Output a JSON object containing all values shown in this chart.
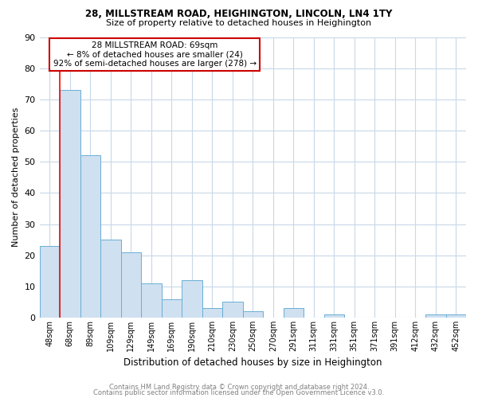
{
  "title1": "28, MILLSTREAM ROAD, HEIGHINGTON, LINCOLN, LN4 1TY",
  "title2": "Size of property relative to detached houses in Heighington",
  "xlabel": "Distribution of detached houses by size in Heighington",
  "ylabel": "Number of detached properties",
  "categories": [
    "48sqm",
    "68sqm",
    "89sqm",
    "109sqm",
    "129sqm",
    "149sqm",
    "169sqm",
    "190sqm",
    "210sqm",
    "230sqm",
    "250sqm",
    "270sqm",
    "291sqm",
    "311sqm",
    "331sqm",
    "351sqm",
    "371sqm",
    "391sqm",
    "412sqm",
    "432sqm",
    "452sqm"
  ],
  "values": [
    23,
    73,
    52,
    25,
    21,
    11,
    6,
    12,
    3,
    5,
    2,
    0,
    3,
    0,
    1,
    0,
    0,
    0,
    0,
    1,
    1
  ],
  "bar_color": "#cfe0f0",
  "bar_edge_color": "#6aaed6",
  "red_line_x": 1,
  "annotation_title": "28 MILLSTREAM ROAD: 69sqm",
  "annotation_line1": "← 8% of detached houses are smaller (24)",
  "annotation_line2": "92% of semi-detached houses are larger (278) →",
  "annotation_box_color": "#ffffff",
  "annotation_border_color": "#cc0000",
  "ylim": [
    0,
    90
  ],
  "yticks": [
    0,
    10,
    20,
    30,
    40,
    50,
    60,
    70,
    80,
    90
  ],
  "footer1": "Contains HM Land Registry data © Crown copyright and database right 2024.",
  "footer2": "Contains public sector information licensed under the Open Government Licence v3.0.",
  "bg_color": "#ffffff",
  "grid_color": "#c8d8e8"
}
